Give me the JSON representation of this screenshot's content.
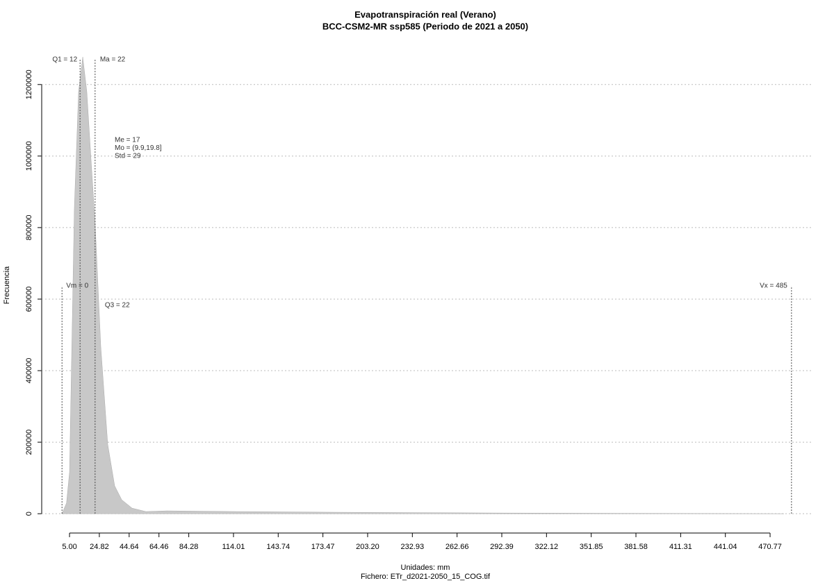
{
  "chart_data": {
    "type": "area",
    "title": "Evapotranspiración real (Verano)",
    "subtitle": "BCC-CSM2-MR ssp585 (Periodo de 2021 a 2050)",
    "x_label": "Unidades: mm",
    "y_label": "Frecuencia",
    "caption": "Fichero: ETr_d2021-2050_15_COG.tif",
    "x": [
      0,
      3,
      5,
      8.2,
      11,
      13.8,
      16.5,
      19.3,
      22,
      25.8,
      30.4,
      35,
      39.7,
      46.6,
      55.8,
      69.7,
      115.9,
      185,
      291,
      480
    ],
    "values": [
      0,
      30000,
      116000,
      854000,
      1180000,
      1277000,
      1180000,
      990000,
      815000,
      466000,
      194000,
      78000,
      39000,
      15500,
      6000,
      8000,
      6000,
      4000,
      2000,
      0
    ],
    "color": "#c8c8c8",
    "xlim": [
      -13.5,
      499.4
    ],
    "ylim": [
      -54000,
      1316000
    ],
    "xticks": [
      {
        "value": 5,
        "label": "5.00"
      },
      {
        "value": 24.82,
        "label": "24.82"
      },
      {
        "value": 44.64,
        "label": "44.64"
      },
      {
        "value": 64.46,
        "label": "64.46"
      },
      {
        "value": 84.28,
        "label": "84.28"
      },
      {
        "value": 114.01,
        "label": "114.01"
      },
      {
        "value": 143.74,
        "label": "143.74"
      },
      {
        "value": 173.47,
        "label": "173.47"
      },
      {
        "value": 203.2,
        "label": "203.20"
      },
      {
        "value": 232.93,
        "label": "232.93"
      },
      {
        "value": 262.66,
        "label": "262.66"
      },
      {
        "value": 292.39,
        "label": "292.39"
      },
      {
        "value": 322.12,
        "label": "322.12"
      },
      {
        "value": 351.85,
        "label": "351.85"
      },
      {
        "value": 381.58,
        "label": "381.58"
      },
      {
        "value": 411.31,
        "label": "411.31"
      },
      {
        "value": 441.04,
        "label": "441.04"
      },
      {
        "value": 470.77,
        "label": "470.77"
      }
    ],
    "yticks": [
      0,
      200000,
      400000,
      600000,
      800000,
      1000000,
      1200000
    ],
    "grid": true,
    "markers": [
      {
        "label": "Q1 = 12",
        "value": 12
      },
      {
        "label": "Ma = 22",
        "value": 22
      },
      {
        "label": "Vm = 0",
        "value": 0
      },
      {
        "label": "Vx = 485",
        "value": 485
      },
      {
        "label": "Q3 = 22",
        "value": 22
      }
    ],
    "stats": [
      "Me = 17",
      "Mo = (9.9,19.8]",
      "Std = 29"
    ]
  }
}
